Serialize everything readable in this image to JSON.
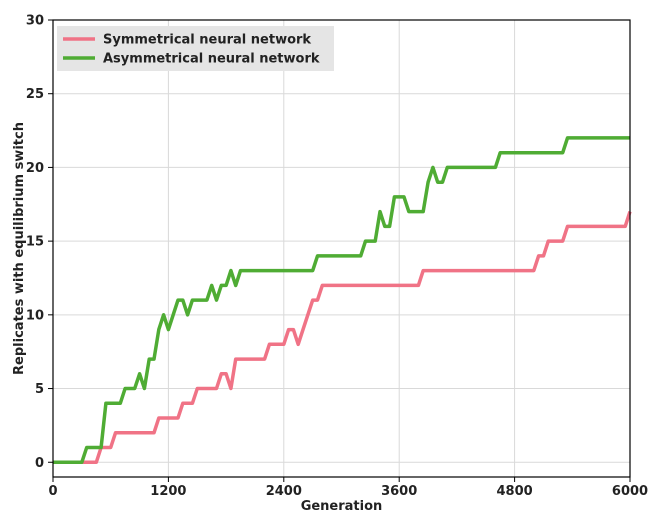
{
  "chart_data": {
    "type": "line",
    "title": "",
    "xlabel": "Generation",
    "ylabel": "Replicates with equilibrium switch",
    "xlim": [
      0,
      6000
    ],
    "ylim": [
      -1,
      30
    ],
    "xticks": [
      0,
      1200,
      2400,
      3600,
      4800,
      6000
    ],
    "yticks": [
      0,
      5,
      10,
      15,
      20,
      25,
      30
    ],
    "grid": true,
    "legend_position": "top-left",
    "series": [
      {
        "name": "Symmetrical neural network",
        "color": "#f07386",
        "points": [
          [
            0,
            0
          ],
          [
            300,
            0
          ],
          [
            450,
            0
          ],
          [
            500,
            1
          ],
          [
            600,
            1
          ],
          [
            650,
            2
          ],
          [
            1050,
            2
          ],
          [
            1100,
            3
          ],
          [
            1300,
            3
          ],
          [
            1350,
            4
          ],
          [
            1450,
            4
          ],
          [
            1500,
            5
          ],
          [
            1700,
            5
          ],
          [
            1750,
            6
          ],
          [
            1800,
            6
          ],
          [
            1850,
            5
          ],
          [
            1900,
            7
          ],
          [
            2200,
            7
          ],
          [
            2250,
            8
          ],
          [
            2400,
            8
          ],
          [
            2450,
            9
          ],
          [
            2500,
            9
          ],
          [
            2550,
            8
          ],
          [
            2600,
            9
          ],
          [
            2700,
            11
          ],
          [
            2750,
            11
          ],
          [
            2800,
            12
          ],
          [
            3800,
            12
          ],
          [
            3850,
            13
          ],
          [
            5000,
            13
          ],
          [
            5050,
            14
          ],
          [
            5100,
            14
          ],
          [
            5150,
            15
          ],
          [
            5300,
            15
          ],
          [
            5350,
            16
          ],
          [
            5950,
            16
          ],
          [
            6000,
            17
          ]
        ]
      },
      {
        "name": "Asymmetrical neural network",
        "color": "#4fac34",
        "points": [
          [
            0,
            0
          ],
          [
            300,
            0
          ],
          [
            350,
            1
          ],
          [
            500,
            1
          ],
          [
            550,
            4
          ],
          [
            700,
            4
          ],
          [
            750,
            5
          ],
          [
            850,
            5
          ],
          [
            900,
            6
          ],
          [
            950,
            5
          ],
          [
            1000,
            7
          ],
          [
            1050,
            7
          ],
          [
            1100,
            9
          ],
          [
            1150,
            10
          ],
          [
            1200,
            9
          ],
          [
            1250,
            10
          ],
          [
            1300,
            11
          ],
          [
            1350,
            11
          ],
          [
            1400,
            10
          ],
          [
            1450,
            11
          ],
          [
            1600,
            11
          ],
          [
            1650,
            12
          ],
          [
            1700,
            11
          ],
          [
            1750,
            12
          ],
          [
            1800,
            12
          ],
          [
            1850,
            13
          ],
          [
            1900,
            12
          ],
          [
            1950,
            13
          ],
          [
            2700,
            13
          ],
          [
            2750,
            14
          ],
          [
            3200,
            14
          ],
          [
            3250,
            15
          ],
          [
            3350,
            15
          ],
          [
            3400,
            17
          ],
          [
            3450,
            16
          ],
          [
            3500,
            16
          ],
          [
            3550,
            18
          ],
          [
            3650,
            18
          ],
          [
            3700,
            17
          ],
          [
            3850,
            17
          ],
          [
            3900,
            19
          ],
          [
            3950,
            20
          ],
          [
            4000,
            19
          ],
          [
            4050,
            19
          ],
          [
            4100,
            20
          ],
          [
            4600,
            20
          ],
          [
            4650,
            21
          ],
          [
            5300,
            21
          ],
          [
            5350,
            22
          ],
          [
            6000,
            22
          ]
        ]
      }
    ]
  }
}
